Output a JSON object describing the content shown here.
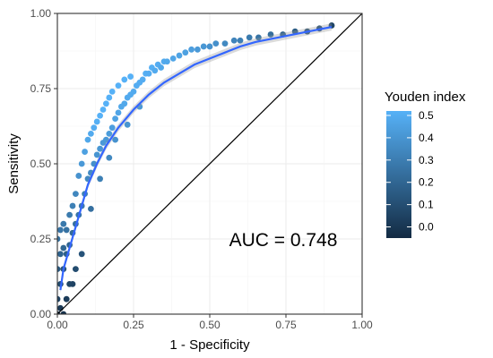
{
  "chart_data": {
    "type": "scatter",
    "xlabel": "1 - Specificity",
    "ylabel": "Sensitivity",
    "xlim": [
      0,
      1
    ],
    "ylim": [
      0,
      1
    ],
    "x_ticks": [
      "0.00",
      "0.25",
      "0.50",
      "0.75",
      "1.00"
    ],
    "y_ticks": [
      "0.00",
      "0.25",
      "0.50",
      "0.75",
      "1.00"
    ],
    "grid": true,
    "annotation": "AUC = 0.748",
    "diagonal_reference": [
      [
        0,
        0
      ],
      [
        1,
        1
      ]
    ],
    "legend": {
      "title": "Youden index",
      "placement": "right",
      "ticks": [
        "0.5",
        "0.4",
        "0.3",
        "0.2",
        "0.1",
        "0.0"
      ],
      "range": [
        -0.05,
        0.52
      ],
      "colors": {
        "low": "#132B43",
        "high": "#56B1F7"
      }
    },
    "smooth_line": {
      "color": "#3366FF",
      "x": [
        0.01,
        0.02,
        0.04,
        0.06,
        0.08,
        0.1,
        0.13,
        0.16,
        0.2,
        0.25,
        0.3,
        0.35,
        0.4,
        0.45,
        0.5,
        0.55,
        0.6,
        0.65,
        0.7,
        0.75,
        0.8,
        0.85,
        0.9
      ],
      "y": [
        0.08,
        0.15,
        0.22,
        0.29,
        0.36,
        0.43,
        0.5,
        0.56,
        0.62,
        0.68,
        0.73,
        0.77,
        0.8,
        0.83,
        0.85,
        0.87,
        0.89,
        0.905,
        0.915,
        0.925,
        0.935,
        0.945,
        0.955
      ]
    },
    "series": [
      {
        "x": [
          0.0,
          0.0,
          0.0,
          0.01,
          0.01,
          0.01,
          0.02,
          0.02,
          0.02,
          0.03,
          0.03,
          0.04,
          0.04,
          0.05,
          0.05,
          0.06,
          0.06,
          0.07,
          0.07,
          0.08,
          0.08,
          0.09,
          0.09,
          0.1,
          0.1,
          0.11,
          0.11,
          0.12,
          0.12,
          0.13,
          0.13,
          0.14,
          0.14,
          0.15,
          0.15,
          0.16,
          0.16,
          0.17,
          0.17,
          0.18,
          0.18,
          0.19,
          0.2,
          0.2,
          0.21,
          0.22,
          0.22,
          0.23,
          0.24,
          0.24,
          0.25,
          0.26,
          0.27,
          0.28,
          0.29,
          0.3,
          0.31,
          0.32,
          0.33,
          0.34,
          0.35,
          0.36,
          0.38,
          0.4,
          0.42,
          0.44,
          0.46,
          0.48,
          0.5,
          0.52,
          0.55,
          0.58,
          0.6,
          0.63,
          0.66,
          0.7,
          0.74,
          0.78,
          0.82,
          0.86,
          0.9,
          0.03,
          0.05,
          0.08,
          0.11,
          0.14,
          0.17,
          0.19,
          0.23,
          0.27,
          0.01,
          0.02,
          0.04,
          0.0,
          0.06
        ],
        "y": [
          0.05,
          0.15,
          0.25,
          0.1,
          0.2,
          0.28,
          0.15,
          0.22,
          0.3,
          0.2,
          0.28,
          0.23,
          0.33,
          0.27,
          0.36,
          0.3,
          0.4,
          0.33,
          0.46,
          0.36,
          0.5,
          0.4,
          0.54,
          0.45,
          0.58,
          0.47,
          0.6,
          0.5,
          0.62,
          0.53,
          0.64,
          0.55,
          0.66,
          0.57,
          0.68,
          0.58,
          0.7,
          0.6,
          0.72,
          0.62,
          0.74,
          0.65,
          0.67,
          0.76,
          0.69,
          0.7,
          0.78,
          0.72,
          0.73,
          0.79,
          0.74,
          0.76,
          0.77,
          0.78,
          0.8,
          0.8,
          0.82,
          0.81,
          0.83,
          0.82,
          0.84,
          0.84,
          0.85,
          0.86,
          0.87,
          0.88,
          0.88,
          0.89,
          0.89,
          0.9,
          0.9,
          0.91,
          0.91,
          0.92,
          0.92,
          0.93,
          0.93,
          0.94,
          0.94,
          0.95,
          0.96,
          0.05,
          0.1,
          0.2,
          0.35,
          0.45,
          0.52,
          0.58,
          0.63,
          0.69,
          0.02,
          0.0,
          0.1,
          0.0,
          0.15
        ],
        "z": [
          0.05,
          0.15,
          0.25,
          0.09,
          0.19,
          0.27,
          0.13,
          0.2,
          0.28,
          0.17,
          0.25,
          0.19,
          0.29,
          0.22,
          0.31,
          0.24,
          0.34,
          0.26,
          0.39,
          0.28,
          0.42,
          0.31,
          0.45,
          0.35,
          0.48,
          0.36,
          0.49,
          0.38,
          0.5,
          0.4,
          0.51,
          0.41,
          0.52,
          0.42,
          0.53,
          0.42,
          0.54,
          0.43,
          0.55,
          0.44,
          0.56,
          0.46,
          0.47,
          0.56,
          0.48,
          0.48,
          0.56,
          0.49,
          0.49,
          0.55,
          0.49,
          0.5,
          0.5,
          0.5,
          0.51,
          0.5,
          0.51,
          0.49,
          0.5,
          0.48,
          0.49,
          0.48,
          0.47,
          0.46,
          0.45,
          0.44,
          0.42,
          0.41,
          0.39,
          0.38,
          0.35,
          0.33,
          0.31,
          0.29,
          0.26,
          0.23,
          0.19,
          0.16,
          0.12,
          0.09,
          0.06,
          0.02,
          0.05,
          0.12,
          0.24,
          0.31,
          0.35,
          0.39,
          0.4,
          0.42,
          0.01,
          -0.02,
          0.06,
          0.0,
          0.09
        ]
      }
    ]
  }
}
